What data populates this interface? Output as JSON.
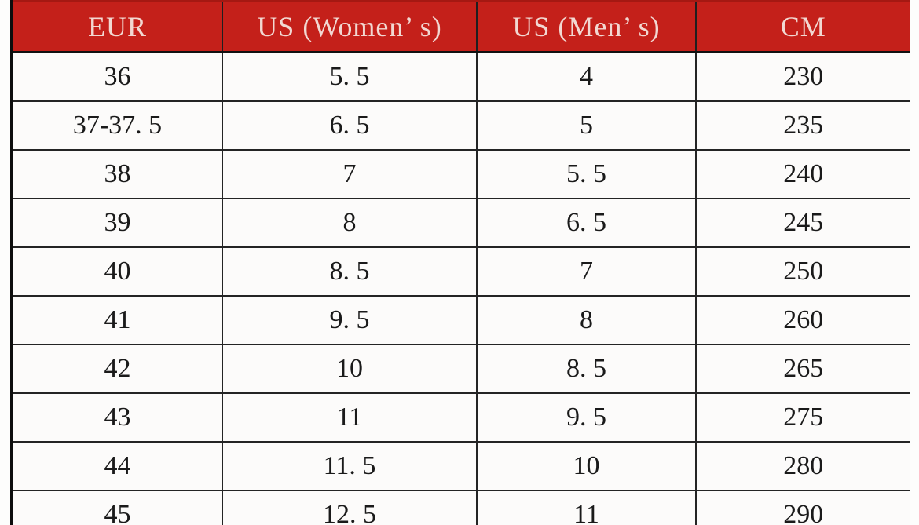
{
  "table": {
    "title": "shoe-size-conversion",
    "accent_color": "#c4201a",
    "header_text_color": "#f2d8d2",
    "grid_color": "#242424",
    "columns": [
      "EUR",
      "US (Women’ s)",
      "US (Men’ s)",
      "CM"
    ],
    "rows": [
      [
        "36",
        "5. 5",
        "4",
        "230"
      ],
      [
        "37-37. 5",
        "6. 5",
        "5",
        "235"
      ],
      [
        "38",
        "7",
        "5. 5",
        "240"
      ],
      [
        "39",
        "8",
        "6. 5",
        "245"
      ],
      [
        "40",
        "8. 5",
        "7",
        "250"
      ],
      [
        "41",
        "9. 5",
        "8",
        "260"
      ],
      [
        "42",
        "10",
        "8. 5",
        "265"
      ],
      [
        "43",
        "11",
        "9. 5",
        "275"
      ],
      [
        "44",
        "11. 5",
        "10",
        "280"
      ],
      [
        "45",
        "12. 5",
        "11",
        "290"
      ]
    ]
  }
}
